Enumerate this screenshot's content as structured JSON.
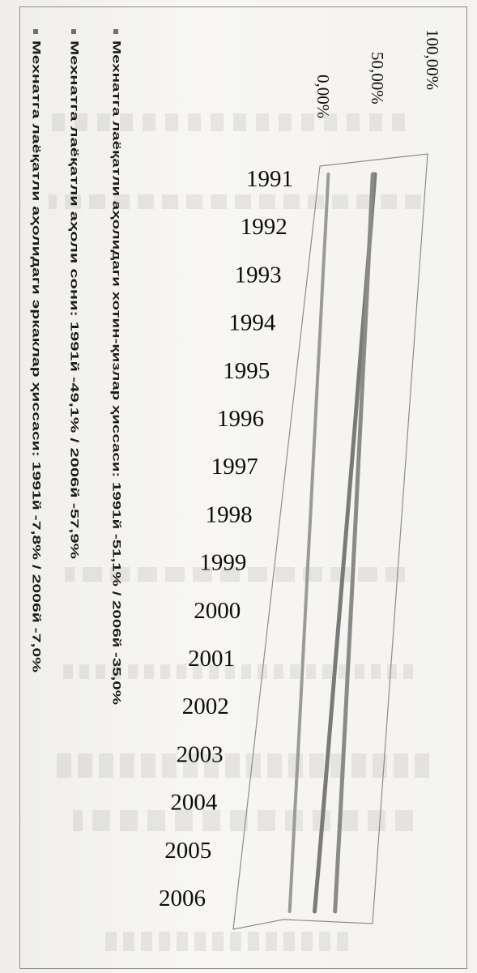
{
  "chart_data": {
    "type": "line",
    "x": [
      "1991",
      "1992",
      "1993",
      "1994",
      "1995",
      "1996",
      "1997",
      "1998",
      "1999",
      "2000",
      "2001",
      "2002",
      "2003",
      "2004",
      "2005",
      "2006"
    ],
    "y_ticks": [
      "0,00%",
      "50,00%",
      "100,00%"
    ],
    "ylim": [
      0,
      100
    ],
    "series": [
      {
        "name": "Мехнатга лаёқатли аҳолидаги хотин-қизлар ҳиссаси: 1991й -51,1% / 2006й -35,0%",
        "color": "#7a7a7a",
        "values": [
          51.1,
          50.4,
          49.6,
          48.7,
          47.8,
          46.9,
          45.9,
          44.8,
          43.7,
          42.6,
          41.5,
          40.4,
          39.2,
          37.9,
          36.6,
          35.0
        ]
      },
      {
        "name": "Мехнатга лаёқатли аҳоли сони: 1991й -49,1% / 2006й -57,9%",
        "color": "#8a8a8a",
        "values": [
          49.1,
          49.7,
          50.3,
          50.9,
          51.5,
          52.1,
          52.7,
          53.3,
          53.9,
          54.5,
          55.1,
          55.7,
          56.3,
          56.9,
          57.4,
          57.9
        ]
      },
      {
        "name": "Мехнатга лаёқатли аҳолидаги эркаклар ҳиссаси: 1991й -7,8% / 2006й -7,0%",
        "color": "#9a9a9a",
        "values": [
          7.8,
          7.8,
          7.7,
          7.7,
          7.6,
          7.6,
          7.5,
          7.5,
          7.4,
          7.4,
          7.3,
          7.3,
          7.2,
          7.1,
          7.1,
          7.0
        ]
      }
    ]
  }
}
